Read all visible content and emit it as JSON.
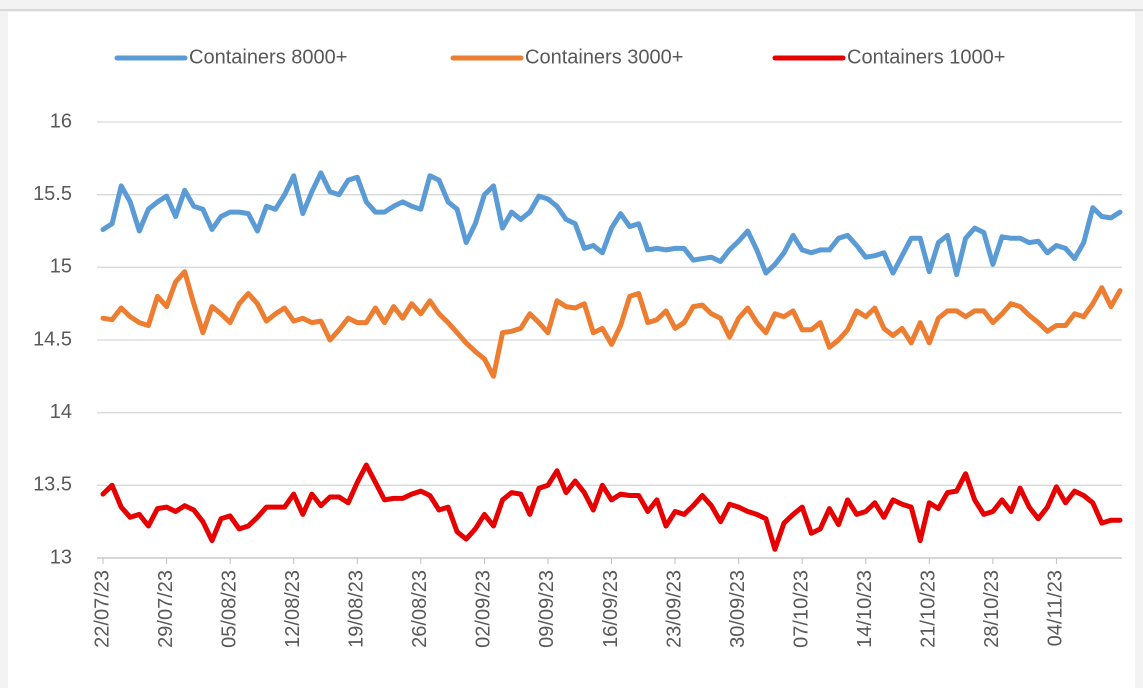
{
  "chart_data": {
    "type": "line",
    "categories": [
      "22/07/23",
      null,
      null,
      null,
      null,
      null,
      null,
      "29/07/23",
      null,
      null,
      null,
      null,
      null,
      null,
      "05/08/23",
      null,
      null,
      null,
      null,
      null,
      null,
      "12/08/23",
      null,
      null,
      null,
      null,
      null,
      null,
      "19/08/23",
      null,
      null,
      null,
      null,
      null,
      null,
      "26/08/23",
      null,
      null,
      null,
      null,
      null,
      null,
      "02/09/23",
      null,
      null,
      null,
      null,
      null,
      null,
      "09/09/23",
      null,
      null,
      null,
      null,
      null,
      null,
      "16/09/23",
      null,
      null,
      null,
      null,
      null,
      null,
      "23/09/23",
      null,
      null,
      null,
      null,
      null,
      null,
      "30/09/23",
      null,
      null,
      null,
      null,
      null,
      null,
      "07/10/23",
      null,
      null,
      null,
      null,
      null,
      null,
      "14/10/23",
      null,
      null,
      null,
      null,
      null,
      null,
      "21/10/23",
      null,
      null,
      null,
      null,
      null,
      null,
      "28/10/23",
      null,
      null,
      null,
      null,
      null,
      null,
      "04/11/23",
      null,
      null,
      null,
      null,
      null,
      null,
      null
    ],
    "series": [
      {
        "name": "Containers 8000+",
        "color": "#5b9bd5",
        "values": [
          15.26,
          15.3,
          15.56,
          15.45,
          15.25,
          15.4,
          15.45,
          15.49,
          15.35,
          15.53,
          15.42,
          15.4,
          15.26,
          15.35,
          15.38,
          15.38,
          15.37,
          15.25,
          15.42,
          15.4,
          15.5,
          15.63,
          15.37,
          15.52,
          15.65,
          15.52,
          15.5,
          15.6,
          15.62,
          15.45,
          15.38,
          15.38,
          15.42,
          15.45,
          15.42,
          15.4,
          15.63,
          15.6,
          15.45,
          15.4,
          15.17,
          15.3,
          15.5,
          15.56,
          15.27,
          15.38,
          15.33,
          15.38,
          15.49,
          15.47,
          15.42,
          15.33,
          15.3,
          15.13,
          15.15,
          15.1,
          15.27,
          15.37,
          15.28,
          15.3,
          15.12,
          15.13,
          15.12,
          15.13,
          15.13,
          15.05,
          15.06,
          15.07,
          15.04,
          15.12,
          15.18,
          15.25,
          15.12,
          14.96,
          15.02,
          15.1,
          15.22,
          15.12,
          15.1,
          15.12,
          15.12,
          15.2,
          15.22,
          15.15,
          15.07,
          15.08,
          15.1,
          14.96,
          15.08,
          15.2,
          15.2,
          14.97,
          15.17,
          15.22,
          14.95,
          15.2,
          15.27,
          15.24,
          15.02,
          15.21,
          15.2,
          15.2,
          15.17,
          15.18,
          15.1,
          15.15,
          15.13,
          15.06,
          15.17,
          15.41,
          15.35,
          15.34,
          15.38
        ]
      },
      {
        "name": "Containers 3000+",
        "color": "#ed7d31",
        "values": [
          14.65,
          14.64,
          14.72,
          14.66,
          14.62,
          14.6,
          14.8,
          14.73,
          14.9,
          14.97,
          14.75,
          14.55,
          14.73,
          14.68,
          14.62,
          14.75,
          14.82,
          14.75,
          14.63,
          14.68,
          14.72,
          14.63,
          14.65,
          14.62,
          14.63,
          14.5,
          14.57,
          14.65,
          14.62,
          14.62,
          14.72,
          14.62,
          14.73,
          14.65,
          14.75,
          14.68,
          14.77,
          14.68,
          14.62,
          14.55,
          14.48,
          14.42,
          14.37,
          14.25,
          14.55,
          14.56,
          14.58,
          14.68,
          14.62,
          14.55,
          14.77,
          14.73,
          14.72,
          14.75,
          14.55,
          14.58,
          14.47,
          14.6,
          14.8,
          14.82,
          14.62,
          14.64,
          14.7,
          14.58,
          14.62,
          14.73,
          14.74,
          14.68,
          14.65,
          14.52,
          14.65,
          14.72,
          14.62,
          14.55,
          14.68,
          14.66,
          14.7,
          14.57,
          14.57,
          14.62,
          14.45,
          14.5,
          14.57,
          14.7,
          14.66,
          14.72,
          14.58,
          14.53,
          14.58,
          14.48,
          14.62,
          14.48,
          14.65,
          14.7,
          14.7,
          14.66,
          14.7,
          14.7,
          14.62,
          14.68,
          14.75,
          14.73,
          14.67,
          14.62,
          14.56,
          14.6,
          14.6,
          14.68,
          14.66,
          14.75,
          14.86,
          14.73,
          14.84
        ]
      },
      {
        "name": "Containers 1000+",
        "color": "#e60000",
        "values": [
          13.44,
          13.5,
          13.35,
          13.28,
          13.3,
          13.22,
          13.34,
          13.35,
          13.32,
          13.36,
          13.33,
          13.25,
          13.12,
          13.27,
          13.29,
          13.2,
          13.22,
          13.28,
          13.35,
          13.35,
          13.35,
          13.44,
          13.3,
          13.44,
          13.36,
          13.42,
          13.42,
          13.38,
          13.52,
          13.64,
          13.52,
          13.4,
          13.41,
          13.41,
          13.44,
          13.46,
          13.43,
          13.33,
          13.35,
          13.18,
          13.13,
          13.2,
          13.3,
          13.22,
          13.4,
          13.45,
          13.44,
          13.3,
          13.48,
          13.5,
          13.6,
          13.45,
          13.53,
          13.45,
          13.33,
          13.5,
          13.4,
          13.44,
          13.43,
          13.43,
          13.32,
          13.4,
          13.22,
          13.32,
          13.3,
          13.36,
          13.43,
          13.36,
          13.25,
          13.37,
          13.35,
          13.32,
          13.3,
          13.27,
          13.06,
          13.24,
          13.3,
          13.35,
          13.17,
          13.2,
          13.34,
          13.23,
          13.4,
          13.3,
          13.32,
          13.38,
          13.28,
          13.4,
          13.37,
          13.35,
          13.12,
          13.38,
          13.34,
          13.45,
          13.46,
          13.58,
          13.4,
          13.3,
          13.32,
          13.4,
          13.32,
          13.48,
          13.35,
          13.27,
          13.35,
          13.49,
          13.38,
          13.46,
          13.43,
          13.38,
          13.24,
          13.26,
          13.26
        ]
      }
    ],
    "ylim": [
      13,
      16
    ],
    "yticks": [
      13,
      13.5,
      14,
      14.5,
      15,
      15.5,
      16
    ],
    "grid": true,
    "legend": "top"
  }
}
